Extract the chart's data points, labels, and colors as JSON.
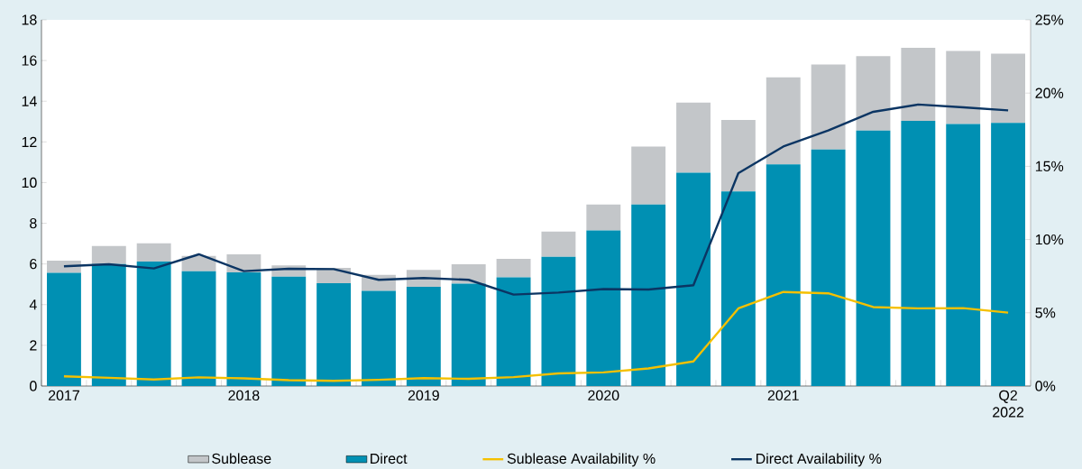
{
  "chart_data": {
    "type": "bar",
    "stacked": true,
    "legend": "bottom",
    "categories": [
      "2017",
      null,
      null,
      null,
      "2018",
      null,
      null,
      null,
      "2019",
      null,
      null,
      null,
      "2020",
      null,
      null,
      null,
      "2021",
      null,
      null,
      null,
      null,
      "Q2 2022"
    ],
    "series": [
      {
        "name": "Direct",
        "color": "#0090b3",
        "values": [
          5.56,
          6.0,
          6.12,
          5.64,
          5.59,
          5.37,
          5.05,
          4.68,
          4.88,
          5.03,
          5.34,
          6.35,
          7.65,
          8.92,
          10.49,
          9.56,
          10.89,
          11.63,
          12.56,
          13.03,
          12.88,
          12.93
        ]
      },
      {
        "name": "Sublease",
        "color": "#c3c6c9",
        "values": [
          0.6,
          0.88,
          0.9,
          0.75,
          0.88,
          0.56,
          0.76,
          0.78,
          0.83,
          0.95,
          0.91,
          1.24,
          1.27,
          2.85,
          3.44,
          3.52,
          4.28,
          4.18,
          3.65,
          3.59,
          3.59,
          3.41
        ]
      },
      {
        "name": "Sublease Availability %",
        "type": "line",
        "axis": "y2",
        "color": "#f5c000",
        "values": [
          0.66,
          0.56,
          0.45,
          0.59,
          0.52,
          0.4,
          0.35,
          0.42,
          0.54,
          0.49,
          0.61,
          0.86,
          0.93,
          1.2,
          1.68,
          5.3,
          6.42,
          6.33,
          5.39,
          5.3,
          5.32,
          5.01
        ]
      },
      {
        "name": "Direct Availability %",
        "type": "line",
        "axis": "y2",
        "color": "#0b3563",
        "values": [
          8.17,
          8.31,
          8.03,
          8.99,
          7.84,
          8.0,
          7.98,
          7.25,
          7.37,
          7.25,
          6.24,
          6.38,
          6.62,
          6.59,
          6.88,
          14.53,
          16.35,
          17.45,
          18.72,
          19.22,
          19.03,
          18.82
        ]
      }
    ],
    "ylim": [
      0,
      18
    ],
    "yticks": [
      0,
      2,
      4,
      6,
      8,
      10,
      12,
      14,
      16,
      18
    ],
    "y2lim": [
      0,
      25
    ],
    "y2ticks": [
      {
        "value": 0,
        "label": "0%"
      },
      {
        "value": 5,
        "label": "5%"
      },
      {
        "value": 10,
        "label": "10%"
      },
      {
        "value": 15,
        "label": "15%"
      },
      {
        "value": 20,
        "label": "20%"
      },
      {
        "value": 25,
        "label": "25%"
      }
    ]
  }
}
